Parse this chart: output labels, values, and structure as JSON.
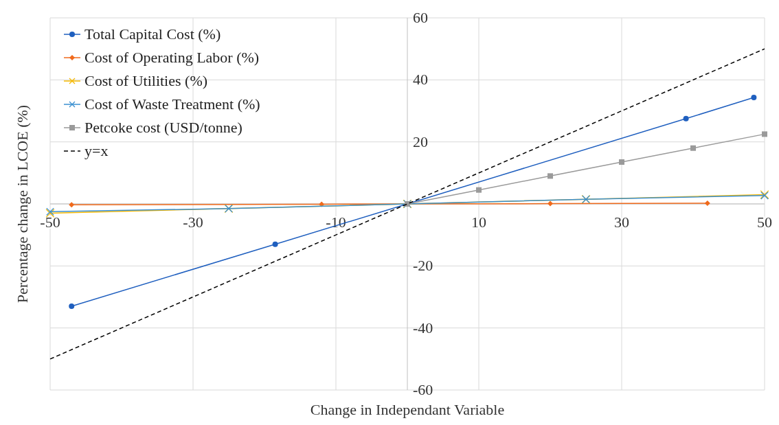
{
  "chart_data": {
    "type": "line",
    "xlabel": "Change in Independant Variable",
    "ylabel": "Percentage change in LCOE (%)",
    "xlim": [
      -50,
      50
    ],
    "xticks": [
      -50,
      -30,
      -10,
      10,
      30,
      50
    ],
    "ylim": [
      -60,
      60
    ],
    "yticks": [
      -60,
      -40,
      -20,
      {
        "value": 0,
        "label": null
      },
      20,
      40,
      60
    ],
    "grid": true,
    "legend": "top left",
    "line_style": "solid",
    "series": [
      {
        "name": "Total Capital Cost (%)",
        "color": "#1f5fbf",
        "marker": "circle",
        "x": [
          -47,
          -18.5,
          0,
          39,
          48.5
        ],
        "values": [
          -33,
          -13,
          0,
          27.5,
          34.3
        ]
      },
      {
        "name": "Cost of Operating Labor (%)",
        "color": "#f06a1c",
        "marker": "diamond",
        "x": [
          -47,
          -12,
          0,
          20,
          42
        ],
        "values": [
          -0.3,
          -0.1,
          0,
          0.1,
          0.2
        ]
      },
      {
        "name": "Cost of Utilities (%)",
        "color": "#f5b800",
        "marker": "cross",
        "x": [
          -50,
          -25,
          0,
          25,
          50
        ],
        "values": [
          -3,
          -1.5,
          0,
          1.5,
          3
        ]
      },
      {
        "name": "Cost of Waste Treatment (%)",
        "color": "#3a8fd0",
        "marker": "cross",
        "x": [
          -50,
          -25,
          0,
          25,
          50
        ],
        "values": [
          -2.5,
          -1.5,
          0,
          1.5,
          2.7
        ]
      },
      {
        "name": "Petcoke cost (USD/tonne)",
        "color": "#9a9a9a",
        "marker": "square",
        "x": [
          0,
          10,
          20,
          30,
          40,
          50
        ],
        "values": [
          0,
          4.5,
          9,
          13.5,
          18,
          22.5
        ]
      },
      {
        "name": "y=x",
        "color": "#000000",
        "marker": "none",
        "line_style": "dashed",
        "x": [
          -50,
          50
        ],
        "values": [
          -50,
          50
        ]
      }
    ]
  }
}
